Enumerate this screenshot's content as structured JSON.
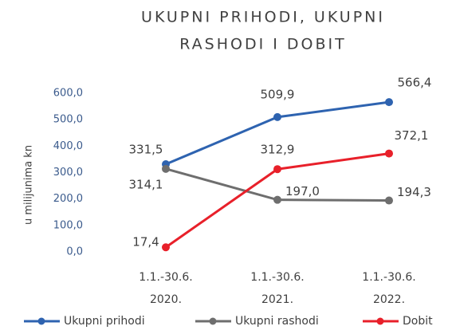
{
  "chart_data": {
    "type": "line",
    "title": [
      "UKUPNI PRIHODI, UKUPNI",
      "RASHODI I DOBIT"
    ],
    "y_label": "u milijunima kn",
    "categories": [
      [
        "1.1.-30.6.",
        "2020."
      ],
      [
        "1.1.-30.6.",
        "2021."
      ],
      [
        "1.1.-30.6.",
        "2022."
      ]
    ],
    "series": [
      {
        "name": "Ukupni prihodi",
        "color": "#2e63b0",
        "values": [
          331.5,
          509.9,
          566.4
        ],
        "value_labels": [
          "331,5",
          "509,9",
          "566,4"
        ]
      },
      {
        "name": "Ukupni rashodi",
        "color": "#6e6e6e",
        "values": [
          314.1,
          197.0,
          194.3
        ],
        "value_labels": [
          "314,1",
          "197,0",
          "194,3"
        ]
      },
      {
        "name": "Dobit",
        "color": "#e8202a",
        "values": [
          17.4,
          312.9,
          372.1
        ],
        "value_labels": [
          "17,4",
          "312,9",
          "372,1"
        ]
      }
    ],
    "ylim": [
      0,
      600
    ],
    "yticks": [
      {
        "value": 0,
        "label": "0,0"
      },
      {
        "value": 100,
        "label": "100,0"
      },
      {
        "value": 200,
        "label": "200,0"
      },
      {
        "value": 300,
        "label": "300,0"
      },
      {
        "value": 400,
        "label": "400,0"
      },
      {
        "value": 500,
        "label": "500,0"
      },
      {
        "value": 600,
        "label": "600,0"
      }
    ],
    "grid": false
  }
}
